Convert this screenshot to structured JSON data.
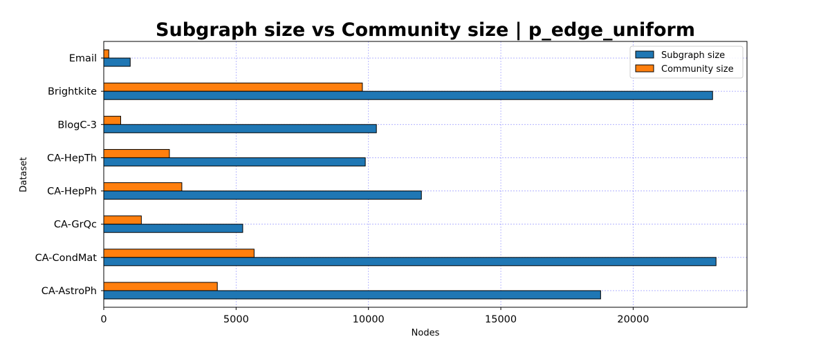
{
  "chart_data": {
    "type": "bar",
    "orientation": "horizontal",
    "title": "Subgraph size vs Community size | p_edge_uniform",
    "xlabel": "Nodes",
    "ylabel": "Dataset",
    "categories": [
      "Email",
      "Brightkite",
      "BlogC-3",
      "CA-HepTh",
      "CA-HepPh",
      "CA-GrQc",
      "CA-CondMat",
      "CA-AstroPh"
    ],
    "series": [
      {
        "name": "Subgraph size",
        "color": "#1f77b4",
        "values": [
          1000,
          23000,
          10300,
          9880,
          12000,
          5250,
          23130,
          18770
        ]
      },
      {
        "name": "Community size",
        "color": "#ff7f0e",
        "values": [
          190,
          9770,
          640,
          2480,
          2950,
          1420,
          5680,
          4290
        ]
      }
    ],
    "xlim": [
      0,
      24300
    ],
    "xticks": [
      0,
      5000,
      10000,
      15000,
      20000
    ],
    "grid": true,
    "grid_color": "#0000ff",
    "legend_position": "top-right"
  }
}
